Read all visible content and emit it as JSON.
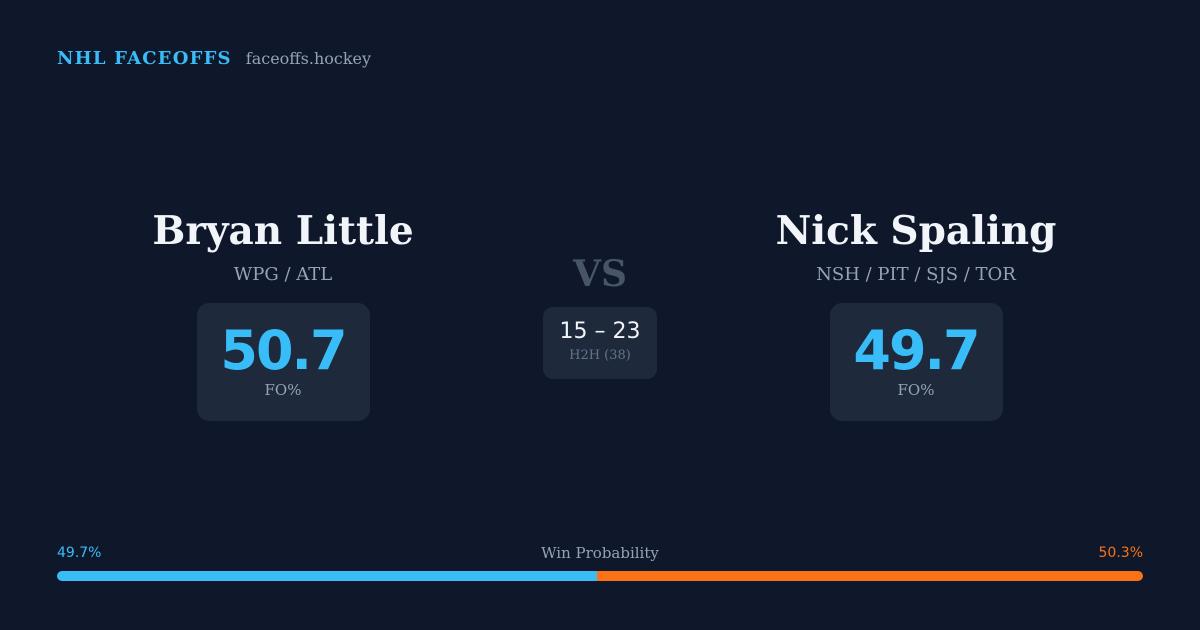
{
  "brand": {
    "title": "NHL FACEOFFS",
    "domain": "faceoffs.hockey"
  },
  "players": {
    "left": {
      "name": "Bryan Little",
      "teams": "WPG / ATL",
      "stat_value": "50.7",
      "stat_label": "FO%"
    },
    "right": {
      "name": "Nick Spaling",
      "teams": "NSH / PIT / SJS / TOR",
      "stat_value": "49.7",
      "stat_label": "FO%"
    }
  },
  "matchup": {
    "vs_label": "VS",
    "h2h_score": "15 – 23",
    "h2h_label": "H2H (38)"
  },
  "win_probability": {
    "title": "Win Probability",
    "left_label": "49.7%",
    "right_label": "50.3%",
    "left_fraction": 0.497,
    "right_fraction": 0.503,
    "left_color": "#38bdf8",
    "right_color": "#f97316"
  },
  "colors": {
    "background": "#0f172a",
    "card": "#1e293b",
    "accent": "#38bdf8",
    "accent_secondary": "#f97316"
  }
}
